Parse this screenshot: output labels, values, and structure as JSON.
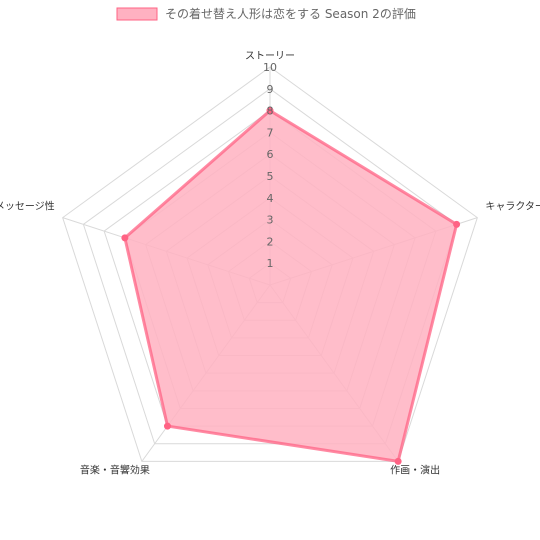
{
  "chart_data": {
    "type": "radar",
    "categories": [
      "ストーリー",
      "キャラクター",
      "作画・演出",
      "音楽・音響効果",
      "メッセージ性"
    ],
    "series": [
      {
        "name": "その着せ替え人形は恋をする Season 2の評価",
        "values": [
          8,
          9,
          10,
          8,
          7
        ]
      }
    ],
    "rlim": [
      0,
      10
    ],
    "ticks": [
      "1",
      "2",
      "3",
      "4",
      "5",
      "6",
      "7",
      "8",
      "9",
      "10"
    ],
    "legend": "top",
    "grid": true,
    "colors": {
      "fill": "#ffb1c1",
      "stroke": "#ff6384",
      "grid": "#d9d9d9"
    }
  }
}
